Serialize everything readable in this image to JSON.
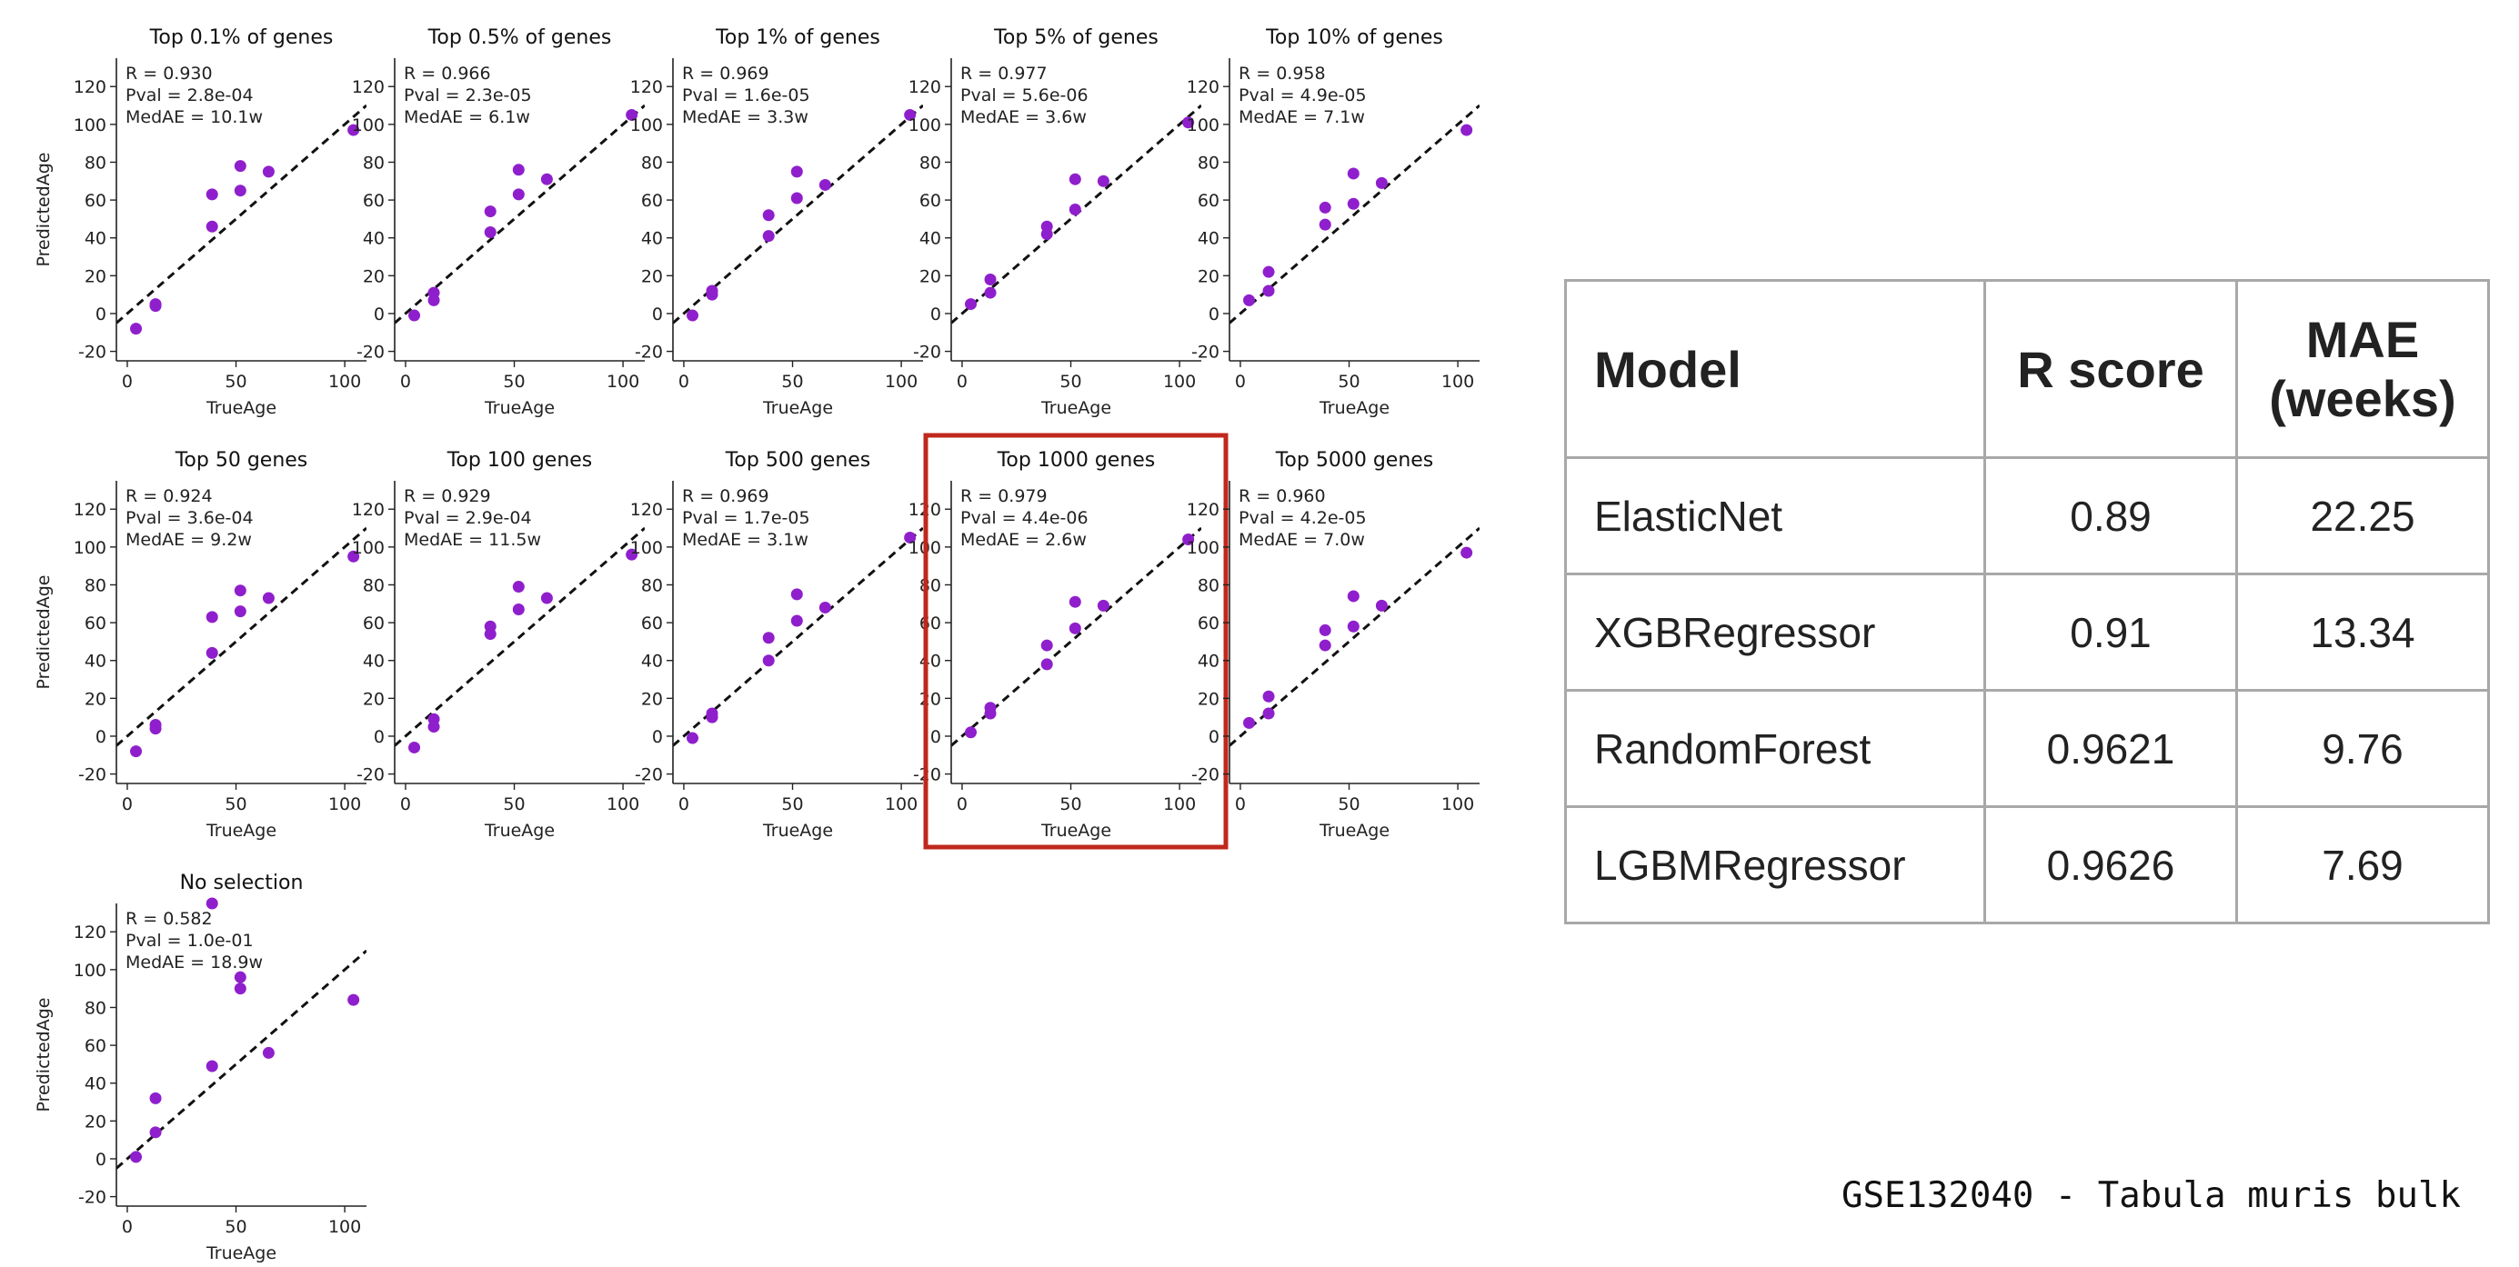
{
  "chart_data": [
    {
      "type": "scatter",
      "title": "Top 0.1% of genes",
      "xlabel": "TrueAge",
      "ylabel": "PredictedAge",
      "xlim": [
        -5,
        110
      ],
      "ylim": [
        -25,
        135
      ],
      "xticks": [
        0,
        50,
        100
      ],
      "yticks": [
        -20,
        0,
        20,
        40,
        60,
        80,
        100,
        120
      ],
      "annotations": [
        "R = 0.930",
        "Pval = 2.8e-04",
        "MedAE = 10.1w"
      ],
      "x": [
        4,
        13,
        13,
        39,
        39,
        52,
        52,
        65,
        104
      ],
      "y": [
        -8,
        4,
        5,
        46,
        63,
        65,
        78,
        75,
        97
      ]
    },
    {
      "type": "scatter",
      "title": "Top 0.5% of genes",
      "xlabel": "TrueAge",
      "ylabel": "",
      "xlim": [
        -5,
        110
      ],
      "ylim": [
        -25,
        135
      ],
      "xticks": [
        0,
        50,
        100
      ],
      "yticks": [
        -20,
        0,
        20,
        40,
        60,
        80,
        100,
        120
      ],
      "annotations": [
        "R = 0.966",
        "Pval = 2.3e-05",
        "MedAE = 6.1w"
      ],
      "x": [
        4,
        13,
        13,
        39,
        39,
        52,
        52,
        65,
        104
      ],
      "y": [
        -1,
        7,
        11,
        43,
        54,
        63,
        76,
        71,
        105
      ]
    },
    {
      "type": "scatter",
      "title": "Top 1% of genes",
      "xlabel": "TrueAge",
      "ylabel": "",
      "xlim": [
        -5,
        110
      ],
      "ylim": [
        -25,
        135
      ],
      "xticks": [
        0,
        50,
        100
      ],
      "yticks": [
        -20,
        0,
        20,
        40,
        60,
        80,
        100,
        120
      ],
      "annotations": [
        "R = 0.969",
        "Pval = 1.6e-05",
        "MedAE = 3.3w"
      ],
      "x": [
        4,
        13,
        13,
        39,
        39,
        52,
        52,
        65,
        104
      ],
      "y": [
        -1,
        10,
        12,
        41,
        52,
        61,
        75,
        68,
        105
      ]
    },
    {
      "type": "scatter",
      "title": "Top 5% of genes",
      "xlabel": "TrueAge",
      "ylabel": "",
      "xlim": [
        -5,
        110
      ],
      "ylim": [
        -25,
        135
      ],
      "xticks": [
        0,
        50,
        100
      ],
      "yticks": [
        -20,
        0,
        20,
        40,
        60,
        80,
        100,
        120
      ],
      "annotations": [
        "R = 0.977",
        "Pval = 5.6e-06",
        "MedAE = 3.6w"
      ],
      "x": [
        4,
        13,
        13,
        39,
        39,
        52,
        52,
        65,
        104
      ],
      "y": [
        5,
        11,
        18,
        42,
        46,
        55,
        71,
        70,
        101
      ]
    },
    {
      "type": "scatter",
      "title": "Top 10% of genes",
      "xlabel": "TrueAge",
      "ylabel": "",
      "xlim": [
        -5,
        110
      ],
      "ylim": [
        -25,
        135
      ],
      "xticks": [
        0,
        50,
        100
      ],
      "yticks": [
        -20,
        0,
        20,
        40,
        60,
        80,
        100,
        120
      ],
      "annotations": [
        "R = 0.958",
        "Pval = 4.9e-05",
        "MedAE = 7.1w"
      ],
      "x": [
        4,
        13,
        13,
        39,
        39,
        52,
        52,
        65,
        104
      ],
      "y": [
        7,
        12,
        22,
        47,
        56,
        58,
        74,
        69,
        97
      ]
    },
    {
      "type": "scatter",
      "title": "Top 50 genes",
      "xlabel": "TrueAge",
      "ylabel": "PredictedAge",
      "xlim": [
        -5,
        110
      ],
      "ylim": [
        -25,
        135
      ],
      "xticks": [
        0,
        50,
        100
      ],
      "yticks": [
        -20,
        0,
        20,
        40,
        60,
        80,
        100,
        120
      ],
      "annotations": [
        "R = 0.924",
        "Pval = 3.6e-04",
        "MedAE = 9.2w"
      ],
      "x": [
        4,
        13,
        13,
        39,
        39,
        52,
        52,
        65,
        104
      ],
      "y": [
        -8,
        4,
        6,
        44,
        63,
        66,
        77,
        73,
        95
      ]
    },
    {
      "type": "scatter",
      "title": "Top 100 genes",
      "xlabel": "TrueAge",
      "ylabel": "",
      "xlim": [
        -5,
        110
      ],
      "ylim": [
        -25,
        135
      ],
      "xticks": [
        0,
        50,
        100
      ],
      "yticks": [
        -20,
        0,
        20,
        40,
        60,
        80,
        100,
        120
      ],
      "annotations": [
        "R = 0.929",
        "Pval = 2.9e-04",
        "MedAE = 11.5w"
      ],
      "x": [
        4,
        13,
        13,
        39,
        39,
        52,
        52,
        65,
        104
      ],
      "y": [
        -6,
        5,
        9,
        54,
        58,
        67,
        79,
        73,
        96
      ]
    },
    {
      "type": "scatter",
      "title": "Top 500 genes",
      "xlabel": "TrueAge",
      "ylabel": "",
      "xlim": [
        -5,
        110
      ],
      "ylim": [
        -25,
        135
      ],
      "xticks": [
        0,
        50,
        100
      ],
      "yticks": [
        -20,
        0,
        20,
        40,
        60,
        80,
        100,
        120
      ],
      "annotations": [
        "R = 0.969",
        "Pval = 1.7e-05",
        "MedAE = 3.1w"
      ],
      "x": [
        4,
        13,
        13,
        39,
        39,
        52,
        52,
        65,
        104
      ],
      "y": [
        -1,
        10,
        12,
        40,
        52,
        61,
        75,
        68,
        105
      ]
    },
    {
      "type": "scatter",
      "title": "Top 1000 genes",
      "xlabel": "TrueAge",
      "ylabel": "",
      "xlim": [
        -5,
        110
      ],
      "ylim": [
        -25,
        135
      ],
      "xticks": [
        0,
        50,
        100
      ],
      "yticks": [
        -20,
        0,
        20,
        40,
        60,
        80,
        100,
        120
      ],
      "highlighted": true,
      "annotations": [
        "R = 0.979",
        "Pval = 4.4e-06",
        "MedAE = 2.6w"
      ],
      "x": [
        4,
        13,
        13,
        39,
        39,
        52,
        52,
        65,
        104
      ],
      "y": [
        2,
        12,
        15,
        38,
        48,
        57,
        71,
        69,
        104
      ]
    },
    {
      "type": "scatter",
      "title": "Top 5000 genes",
      "xlabel": "TrueAge",
      "ylabel": "",
      "xlim": [
        -5,
        110
      ],
      "ylim": [
        -25,
        135
      ],
      "xticks": [
        0,
        50,
        100
      ],
      "yticks": [
        -20,
        0,
        20,
        40,
        60,
        80,
        100,
        120
      ],
      "annotations": [
        "R = 0.960",
        "Pval = 4.2e-05",
        "MedAE = 7.0w"
      ],
      "x": [
        4,
        13,
        13,
        39,
        39,
        52,
        52,
        65,
        104
      ],
      "y": [
        7,
        12,
        21,
        48,
        56,
        58,
        74,
        69,
        97
      ]
    },
    {
      "type": "scatter",
      "title": "No selection",
      "xlabel": "TrueAge",
      "ylabel": "PredictedAge",
      "xlim": [
        -5,
        110
      ],
      "ylim": [
        -25,
        135
      ],
      "xticks": [
        0,
        50,
        100
      ],
      "yticks": [
        -20,
        0,
        20,
        40,
        60,
        80,
        100,
        120
      ],
      "annotations": [
        "R = 0.582",
        "Pval = 1.0e-01",
        "MedAE = 18.9w"
      ],
      "x": [
        4,
        13,
        13,
        39,
        39,
        52,
        52,
        65,
        104
      ],
      "y": [
        1,
        14,
        32,
        49,
        135,
        90,
        96,
        56,
        84
      ]
    }
  ],
  "colors": {
    "points": "#8f1fcc",
    "diagonal": "#111111",
    "highlight": "#c0281c",
    "table_border": "#a8a8a8"
  },
  "table": {
    "headers": {
      "model": "Model",
      "r": "R score",
      "mae": "MAE (weeks)"
    },
    "rows": [
      {
        "model": "ElasticNet",
        "r": "0.89",
        "mae": "22.25"
      },
      {
        "model": "XGBRegressor",
        "r": "0.91",
        "mae": "13.34"
      },
      {
        "model": "RandomForest",
        "r": "0.9621",
        "mae": "9.76"
      },
      {
        "model": "LGBMRegressor",
        "r": "0.9626",
        "mae": "7.69"
      }
    ]
  },
  "footer": "GSE132040 - Tabula muris bulk"
}
